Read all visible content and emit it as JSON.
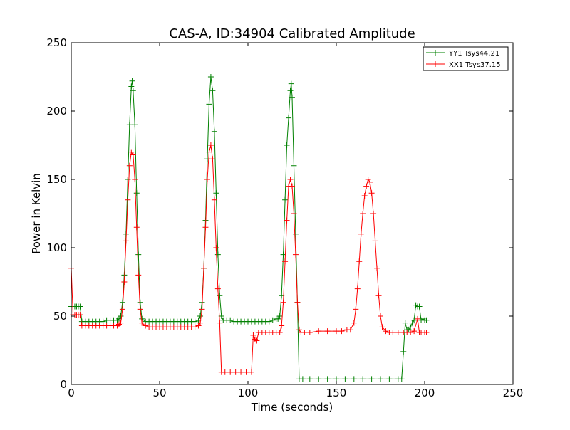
{
  "chart_data": {
    "type": "line",
    "title": "CAS-A, ID:34904 Calibrated Amplitude",
    "xlabel": "Time (seconds)",
    "ylabel": "Power in Kelvin",
    "xlim": [
      0,
      250
    ],
    "ylim": [
      0,
      250
    ],
    "xticks": [
      0,
      50,
      100,
      150,
      200,
      250
    ],
    "yticks": [
      0,
      50,
      100,
      150,
      200,
      250
    ],
    "grid": false,
    "legend_position": "top-right",
    "marker": "plus",
    "series": [
      {
        "name": "YY1 Tsys44.21",
        "color": "#008000",
        "points": [
          [
            0,
            57
          ],
          [
            1,
            57
          ],
          [
            2,
            57
          ],
          [
            3,
            57
          ],
          [
            4,
            57
          ],
          [
            5,
            57
          ],
          [
            6,
            46
          ],
          [
            8,
            46
          ],
          [
            10,
            46
          ],
          [
            12,
            46
          ],
          [
            14,
            46
          ],
          [
            16,
            46
          ],
          [
            18,
            46
          ],
          [
            20,
            47
          ],
          [
            22,
            47
          ],
          [
            24,
            47
          ],
          [
            26,
            47
          ],
          [
            27,
            48
          ],
          [
            28,
            50
          ],
          [
            29,
            60
          ],
          [
            30,
            80
          ],
          [
            31,
            110
          ],
          [
            32,
            150
          ],
          [
            33,
            190
          ],
          [
            34,
            218
          ],
          [
            34.5,
            222
          ],
          [
            35,
            215
          ],
          [
            36,
            190
          ],
          [
            37,
            140
          ],
          [
            38,
            95
          ],
          [
            39,
            60
          ],
          [
            40,
            48
          ],
          [
            42,
            46
          ],
          [
            44,
            46
          ],
          [
            46,
            46
          ],
          [
            48,
            46
          ],
          [
            50,
            46
          ],
          [
            52,
            46
          ],
          [
            54,
            46
          ],
          [
            56,
            46
          ],
          [
            58,
            46
          ],
          [
            60,
            46
          ],
          [
            62,
            46
          ],
          [
            64,
            46
          ],
          [
            66,
            46
          ],
          [
            68,
            46
          ],
          [
            70,
            46
          ],
          [
            72,
            47
          ],
          [
            73,
            50
          ],
          [
            74,
            60
          ],
          [
            75,
            85
          ],
          [
            76,
            120
          ],
          [
            77,
            165
          ],
          [
            78,
            205
          ],
          [
            79,
            225
          ],
          [
            80,
            215
          ],
          [
            81,
            185
          ],
          [
            82,
            140
          ],
          [
            83,
            95
          ],
          [
            84,
            65
          ],
          [
            85,
            50
          ],
          [
            86,
            47
          ],
          [
            88,
            47
          ],
          [
            90,
            47
          ],
          [
            92,
            46
          ],
          [
            94,
            46
          ],
          [
            96,
            46
          ],
          [
            98,
            46
          ],
          [
            100,
            46
          ],
          [
            102,
            46
          ],
          [
            104,
            46
          ],
          [
            106,
            46
          ],
          [
            108,
            46
          ],
          [
            110,
            46
          ],
          [
            112,
            46
          ],
          [
            114,
            47
          ],
          [
            116,
            48
          ],
          [
            117,
            48
          ],
          [
            118,
            50
          ],
          [
            119,
            65
          ],
          [
            120,
            95
          ],
          [
            121,
            135
          ],
          [
            122,
            175
          ],
          [
            123,
            195
          ],
          [
            124,
            215
          ],
          [
            124.5,
            220
          ],
          [
            125,
            210
          ],
          [
            126,
            160
          ],
          [
            127,
            110
          ],
          [
            128,
            60
          ],
          [
            129,
            4
          ],
          [
            131,
            4
          ],
          [
            135,
            4
          ],
          [
            140,
            4
          ],
          [
            145,
            4
          ],
          [
            150,
            4
          ],
          [
            155,
            4
          ],
          [
            160,
            4
          ],
          [
            165,
            4
          ],
          [
            170,
            4
          ],
          [
            175,
            4
          ],
          [
            180,
            4
          ],
          [
            185,
            4
          ],
          [
            187,
            4
          ],
          [
            188,
            24
          ],
          [
            189,
            45
          ],
          [
            190,
            40
          ],
          [
            191,
            40
          ],
          [
            192,
            42
          ],
          [
            193,
            45
          ],
          [
            194,
            47
          ],
          [
            195,
            58
          ],
          [
            196,
            57
          ],
          [
            197,
            57
          ],
          [
            198,
            47
          ],
          [
            199,
            48
          ],
          [
            200,
            47
          ],
          [
            201,
            47
          ]
        ]
      },
      {
        "name": "XX1 Tsys37.15",
        "color": "#ff0000",
        "points": [
          [
            0,
            85
          ],
          [
            1,
            51
          ],
          [
            2,
            51
          ],
          [
            3,
            51
          ],
          [
            4,
            51
          ],
          [
            5,
            51
          ],
          [
            6,
            43
          ],
          [
            8,
            43
          ],
          [
            10,
            43
          ],
          [
            12,
            43
          ],
          [
            14,
            43
          ],
          [
            16,
            43
          ],
          [
            18,
            43
          ],
          [
            20,
            43
          ],
          [
            22,
            43
          ],
          [
            24,
            43
          ],
          [
            26,
            43
          ],
          [
            27,
            44
          ],
          [
            28,
            45
          ],
          [
            29,
            55
          ],
          [
            30,
            75
          ],
          [
            31,
            105
          ],
          [
            32,
            135
          ],
          [
            33,
            160
          ],
          [
            34,
            170
          ],
          [
            35,
            168
          ],
          [
            36,
            150
          ],
          [
            37,
            115
          ],
          [
            38,
            80
          ],
          [
            39,
            55
          ],
          [
            40,
            45
          ],
          [
            42,
            43
          ],
          [
            44,
            42
          ],
          [
            46,
            42
          ],
          [
            48,
            42
          ],
          [
            50,
            42
          ],
          [
            52,
            42
          ],
          [
            54,
            42
          ],
          [
            56,
            42
          ],
          [
            58,
            42
          ],
          [
            60,
            42
          ],
          [
            62,
            42
          ],
          [
            64,
            42
          ],
          [
            66,
            42
          ],
          [
            68,
            42
          ],
          [
            70,
            42
          ],
          [
            72,
            43
          ],
          [
            73,
            45
          ],
          [
            74,
            55
          ],
          [
            75,
            85
          ],
          [
            76,
            115
          ],
          [
            77,
            150
          ],
          [
            78,
            170
          ],
          [
            79,
            175
          ],
          [
            80,
            165
          ],
          [
            81,
            135
          ],
          [
            82,
            100
          ],
          [
            83,
            70
          ],
          [
            84,
            45
          ],
          [
            85,
            9
          ],
          [
            87,
            9
          ],
          [
            90,
            9
          ],
          [
            93,
            9
          ],
          [
            96,
            9
          ],
          [
            99,
            9
          ],
          [
            102,
            9
          ],
          [
            103,
            36
          ],
          [
            104,
            33
          ],
          [
            105,
            32
          ],
          [
            106,
            38
          ],
          [
            108,
            38
          ],
          [
            110,
            38
          ],
          [
            112,
            38
          ],
          [
            114,
            38
          ],
          [
            116,
            38
          ],
          [
            118,
            38
          ],
          [
            119,
            43
          ],
          [
            120,
            60
          ],
          [
            121,
            90
          ],
          [
            122,
            120
          ],
          [
            123,
            145
          ],
          [
            124,
            150
          ],
          [
            125,
            145
          ],
          [
            126,
            125
          ],
          [
            127,
            95
          ],
          [
            128,
            60
          ],
          [
            129,
            40
          ],
          [
            130,
            38
          ],
          [
            132,
            38
          ],
          [
            135,
            38
          ],
          [
            140,
            39
          ],
          [
            145,
            39
          ],
          [
            150,
            39
          ],
          [
            153,
            39
          ],
          [
            156,
            40
          ],
          [
            158,
            40
          ],
          [
            160,
            45
          ],
          [
            161,
            55
          ],
          [
            162,
            70
          ],
          [
            163,
            90
          ],
          [
            164,
            110
          ],
          [
            165,
            125
          ],
          [
            166,
            138
          ],
          [
            167,
            145
          ],
          [
            168,
            150
          ],
          [
            169,
            148
          ],
          [
            170,
            140
          ],
          [
            171,
            125
          ],
          [
            172,
            105
          ],
          [
            173,
            85
          ],
          [
            174,
            65
          ],
          [
            175,
            50
          ],
          [
            176,
            42
          ],
          [
            178,
            39
          ],
          [
            180,
            38
          ],
          [
            182,
            38
          ],
          [
            185,
            38
          ],
          [
            188,
            38
          ],
          [
            190,
            38
          ],
          [
            192,
            38
          ],
          [
            194,
            39
          ],
          [
            196,
            48
          ],
          [
            197,
            38
          ],
          [
            198,
            38
          ],
          [
            199,
            38
          ],
          [
            200,
            38
          ],
          [
            201,
            38
          ]
        ]
      }
    ]
  }
}
